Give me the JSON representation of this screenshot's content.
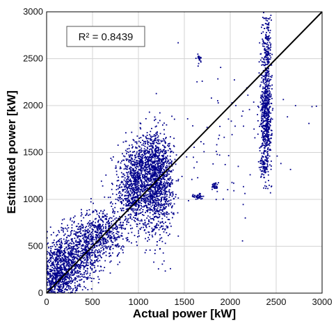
{
  "chart_data": {
    "type": "scatter",
    "title": "",
    "xlabel": "Actual power [kW]",
    "ylabel": "Estimated power [kW]",
    "xlim": [
      0,
      3000
    ],
    "ylim": [
      0,
      3000
    ],
    "xticks": [
      "0",
      "500",
      "1000",
      "1500",
      "2000",
      "2500",
      "3000"
    ],
    "yticks": [
      "0",
      "500",
      "1000",
      "1500",
      "2000",
      "2500",
      "3000"
    ],
    "grid": true,
    "annotation": "R² = 0.8439",
    "reference_line": {
      "type": "y=x",
      "color": "#000000"
    },
    "series": [
      {
        "marker_color": "#00008b",
        "clusters": [
          {
            "cx": 120,
            "cy": 180,
            "sx": 110,
            "sy": 170,
            "n": 900
          },
          {
            "cx": 350,
            "cy": 430,
            "sx": 150,
            "sy": 170,
            "n": 700
          },
          {
            "cx": 620,
            "cy": 650,
            "sx": 120,
            "sy": 130,
            "n": 450
          },
          {
            "cx": 950,
            "cy": 1100,
            "sx": 110,
            "sy": 200,
            "n": 700
          },
          {
            "cx": 1200,
            "cy": 1150,
            "sx": 90,
            "sy": 260,
            "n": 1100
          },
          {
            "cx": 1100,
            "cy": 1400,
            "sx": 130,
            "sy": 150,
            "n": 400
          },
          {
            "cx": 2390,
            "cy": 1900,
            "sx": 30,
            "sy": 280,
            "n": 600
          },
          {
            "cx": 2400,
            "cy": 2600,
            "sx": 25,
            "sy": 220,
            "n": 180
          },
          {
            "cx": 2370,
            "cy": 1350,
            "sx": 25,
            "sy": 60,
            "n": 60
          },
          {
            "cx": 1650,
            "cy": 1030,
            "sx": 25,
            "sy": 15,
            "n": 40
          },
          {
            "cx": 1830,
            "cy": 1140,
            "sx": 15,
            "sy": 20,
            "n": 30
          },
          {
            "cx": 1660,
            "cy": 2510,
            "sx": 15,
            "sy": 25,
            "n": 20
          },
          {
            "cx": 1900,
            "cy": 1700,
            "sx": 350,
            "sy": 400,
            "n": 80
          }
        ]
      }
    ]
  }
}
